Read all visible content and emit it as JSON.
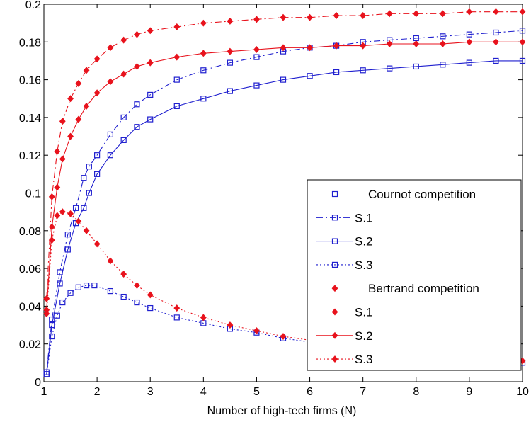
{
  "chart_data": {
    "type": "line",
    "title": "",
    "xlabel": "Number of high-tech firms (N)",
    "ylabel": "",
    "xlim": [
      1,
      10
    ],
    "ylim": [
      0,
      0.2
    ],
    "xticks": [
      1,
      2,
      3,
      4,
      5,
      6,
      7,
      8,
      9,
      10
    ],
    "yticks": [
      0,
      0.02,
      0.04,
      0.06,
      0.08,
      0.1,
      0.12,
      0.14,
      0.16,
      0.18,
      0.2
    ],
    "ytick_labels": [
      "0",
      "0.02",
      "0.04",
      "0.06",
      "0.08",
      "0.1",
      "0.12",
      "0.14",
      "0.16",
      "0.18",
      "0.2"
    ],
    "grid": false,
    "legend_position": "bottom-right",
    "colors": {
      "cournot": "#1f1fcf",
      "bertrand": "#e8121c"
    },
    "legend": [
      {
        "label": "Cournot competition",
        "kind": "header",
        "group": "cournot"
      },
      {
        "label": "S.1",
        "kind": "series",
        "group": "cournot",
        "dash": "dashdot"
      },
      {
        "label": "S.2",
        "kind": "series",
        "group": "cournot",
        "dash": "solid"
      },
      {
        "label": "S.3",
        "kind": "series",
        "group": "cournot",
        "dash": "dotted"
      },
      {
        "label": "Bertrand competition",
        "kind": "header",
        "group": "bertrand"
      },
      {
        "label": "S.1",
        "kind": "series",
        "group": "bertrand",
        "dash": "dashdot"
      },
      {
        "label": "S.2",
        "kind": "series",
        "group": "bertrand",
        "dash": "solid"
      },
      {
        "label": "S.3",
        "kind": "series",
        "group": "bertrand",
        "dash": "dotted"
      }
    ],
    "series": [
      {
        "name": "S.1",
        "group": "cournot",
        "dash": "dashdot",
        "points": [
          [
            1.05,
            0.005
          ],
          [
            1.15,
            0.033
          ],
          [
            1.3,
            0.058
          ],
          [
            1.45,
            0.078
          ],
          [
            1.6,
            0.092
          ],
          [
            1.75,
            0.108
          ],
          [
            1.85,
            0.114
          ],
          [
            2.0,
            0.12
          ],
          [
            2.25,
            0.131
          ],
          [
            2.5,
            0.14
          ],
          [
            2.75,
            0.147
          ],
          [
            3.0,
            0.152
          ],
          [
            3.5,
            0.16
          ],
          [
            4.0,
            0.165
          ],
          [
            4.5,
            0.169
          ],
          [
            5.0,
            0.172
          ],
          [
            5.5,
            0.175
          ],
          [
            6.0,
            0.177
          ],
          [
            6.5,
            0.178
          ],
          [
            7.0,
            0.18
          ],
          [
            7.5,
            0.181
          ],
          [
            8.0,
            0.182
          ],
          [
            8.5,
            0.183
          ],
          [
            9.0,
            0.184
          ],
          [
            9.5,
            0.185
          ],
          [
            10.0,
            0.186
          ]
        ]
      },
      {
        "name": "S.2",
        "group": "cournot",
        "dash": "solid",
        "points": [
          [
            1.05,
            0.004
          ],
          [
            1.15,
            0.03
          ],
          [
            1.3,
            0.052
          ],
          [
            1.45,
            0.07
          ],
          [
            1.6,
            0.084
          ],
          [
            1.75,
            0.092
          ],
          [
            1.85,
            0.1
          ],
          [
            2.0,
            0.11
          ],
          [
            2.25,
            0.12
          ],
          [
            2.5,
            0.128
          ],
          [
            2.75,
            0.135
          ],
          [
            3.0,
            0.139
          ],
          [
            3.5,
            0.146
          ],
          [
            4.0,
            0.15
          ],
          [
            4.5,
            0.154
          ],
          [
            5.0,
            0.157
          ],
          [
            5.5,
            0.16
          ],
          [
            6.0,
            0.162
          ],
          [
            6.5,
            0.164
          ],
          [
            7.0,
            0.165
          ],
          [
            7.5,
            0.166
          ],
          [
            8.0,
            0.167
          ],
          [
            8.5,
            0.168
          ],
          [
            9.0,
            0.169
          ],
          [
            9.5,
            0.17
          ],
          [
            10.0,
            0.17
          ]
        ]
      },
      {
        "name": "S.3",
        "group": "cournot",
        "dash": "dotted",
        "points": [
          [
            1.05,
            0.004
          ],
          [
            1.15,
            0.024
          ],
          [
            1.25,
            0.035
          ],
          [
            1.35,
            0.042
          ],
          [
            1.5,
            0.047
          ],
          [
            1.65,
            0.05
          ],
          [
            1.8,
            0.051
          ],
          [
            1.95,
            0.051
          ],
          [
            2.25,
            0.048
          ],
          [
            2.5,
            0.045
          ],
          [
            2.75,
            0.042
          ],
          [
            3.0,
            0.039
          ],
          [
            3.5,
            0.034
          ],
          [
            4.0,
            0.031
          ],
          [
            4.5,
            0.028
          ],
          [
            5.0,
            0.026
          ],
          [
            5.5,
            0.023
          ],
          [
            6.0,
            0.021
          ],
          [
            6.5,
            0.019
          ],
          [
            7.0,
            0.017
          ],
          [
            7.5,
            0.016
          ],
          [
            8.0,
            0.014
          ],
          [
            8.5,
            0.013
          ],
          [
            9.0,
            0.012
          ],
          [
            9.5,
            0.011
          ],
          [
            10.0,
            0.01
          ]
        ]
      },
      {
        "name": "S.1",
        "group": "bertrand",
        "dash": "dashdot",
        "points": [
          [
            1.05,
            0.044
          ],
          [
            1.15,
            0.098
          ],
          [
            1.25,
            0.122
          ],
          [
            1.35,
            0.138
          ],
          [
            1.5,
            0.15
          ],
          [
            1.65,
            0.158
          ],
          [
            1.8,
            0.165
          ],
          [
            2.0,
            0.171
          ],
          [
            2.25,
            0.177
          ],
          [
            2.5,
            0.181
          ],
          [
            2.75,
            0.184
          ],
          [
            3.0,
            0.186
          ],
          [
            3.5,
            0.188
          ],
          [
            4.0,
            0.19
          ],
          [
            4.5,
            0.191
          ],
          [
            5.0,
            0.192
          ],
          [
            5.5,
            0.193
          ],
          [
            6.0,
            0.193
          ],
          [
            6.5,
            0.194
          ],
          [
            7.0,
            0.194
          ],
          [
            7.5,
            0.195
          ],
          [
            8.0,
            0.195
          ],
          [
            8.5,
            0.195
          ],
          [
            9.0,
            0.196
          ],
          [
            9.5,
            0.196
          ],
          [
            10.0,
            0.196
          ]
        ]
      },
      {
        "name": "S.2",
        "group": "bertrand",
        "dash": "solid",
        "points": [
          [
            1.05,
            0.038
          ],
          [
            1.15,
            0.082
          ],
          [
            1.25,
            0.103
          ],
          [
            1.35,
            0.118
          ],
          [
            1.5,
            0.13
          ],
          [
            1.65,
            0.139
          ],
          [
            1.8,
            0.146
          ],
          [
            2.0,
            0.153
          ],
          [
            2.25,
            0.159
          ],
          [
            2.5,
            0.163
          ],
          [
            2.75,
            0.167
          ],
          [
            3.0,
            0.169
          ],
          [
            3.5,
            0.172
          ],
          [
            4.0,
            0.174
          ],
          [
            4.5,
            0.175
          ],
          [
            5.0,
            0.176
          ],
          [
            5.5,
            0.177
          ],
          [
            6.0,
            0.177
          ],
          [
            6.5,
            0.178
          ],
          [
            7.0,
            0.178
          ],
          [
            7.5,
            0.179
          ],
          [
            8.0,
            0.179
          ],
          [
            8.5,
            0.179
          ],
          [
            9.0,
            0.18
          ],
          [
            9.5,
            0.18
          ],
          [
            10.0,
            0.18
          ]
        ]
      },
      {
        "name": "S.3",
        "group": "bertrand",
        "dash": "dotted",
        "points": [
          [
            1.05,
            0.036
          ],
          [
            1.15,
            0.075
          ],
          [
            1.25,
            0.088
          ],
          [
            1.35,
            0.09
          ],
          [
            1.5,
            0.089
          ],
          [
            1.65,
            0.085
          ],
          [
            1.8,
            0.08
          ],
          [
            2.0,
            0.073
          ],
          [
            2.25,
            0.064
          ],
          [
            2.5,
            0.057
          ],
          [
            2.75,
            0.051
          ],
          [
            3.0,
            0.046
          ],
          [
            3.5,
            0.039
          ],
          [
            4.0,
            0.034
          ],
          [
            4.5,
            0.03
          ],
          [
            5.0,
            0.027
          ],
          [
            5.5,
            0.024
          ],
          [
            6.0,
            0.022
          ],
          [
            6.5,
            0.02
          ],
          [
            7.0,
            0.019
          ],
          [
            7.5,
            0.017
          ],
          [
            8.0,
            0.016
          ],
          [
            8.5,
            0.014
          ],
          [
            9.0,
            0.013
          ],
          [
            9.5,
            0.012
          ],
          [
            10.0,
            0.011
          ]
        ]
      }
    ]
  }
}
